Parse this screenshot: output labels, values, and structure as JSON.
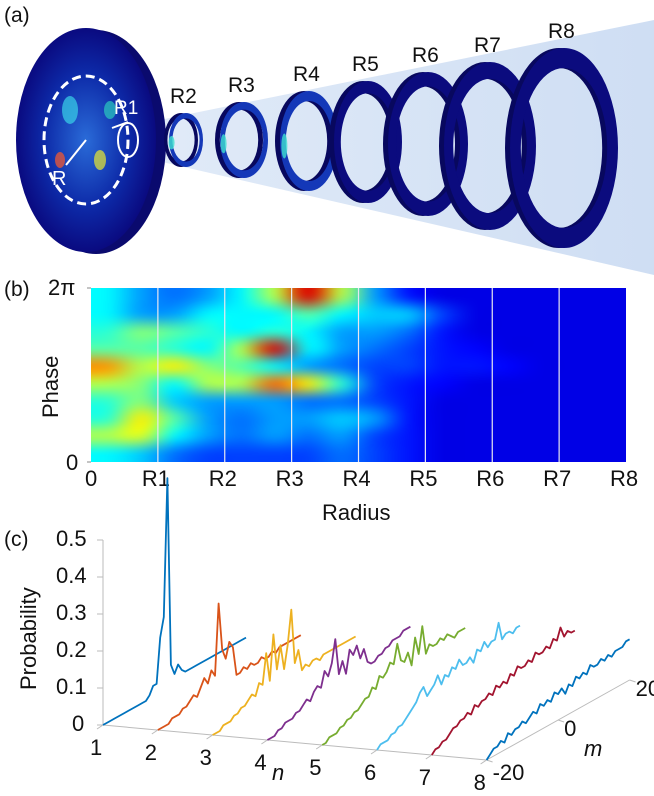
{
  "panel_a": {
    "label": "(a)",
    "disc_labels": {
      "R": "R",
      "R1": "R1"
    },
    "ring_labels": [
      "R2",
      "R3",
      "R4",
      "R5",
      "R6",
      "R7",
      "R8"
    ],
    "colors": {
      "ring": "#0b0b7e",
      "cone": "#cfe0f5"
    }
  },
  "chart_data": [
    {
      "type": "heatmap",
      "panel_label": "(b)",
      "xlabel": "Radius",
      "ylabel": "Phase",
      "x_tick_labels": [
        "0",
        "R1",
        "R2",
        "R3",
        "R4",
        "R5",
        "R6",
        "R7",
        "R8"
      ],
      "y_tick_labels": [
        "0",
        "2π"
      ],
      "colormap": "jet",
      "grid_lines": "vertical at R1..R7",
      "z_rows_from_2pi_to_0": [
        [
          0.3,
          0.2,
          0.15,
          0.2,
          0.3,
          0.5,
          0.9,
          0.5,
          0.2,
          0.05,
          0,
          0,
          0,
          0,
          0,
          0
        ],
        [
          0.3,
          0.2,
          0.2,
          0.3,
          0.3,
          0.3,
          0.4,
          0.3,
          0.25,
          0.25,
          0.1,
          0,
          0,
          0,
          0,
          0
        ],
        [
          0.35,
          0.45,
          0.4,
          0.35,
          0.3,
          0.35,
          0.3,
          0.2,
          0.2,
          0.15,
          0.05,
          0,
          0,
          0,
          0,
          0
        ],
        [
          0.4,
          0.4,
          0.35,
          0.3,
          0.5,
          0.9,
          0.3,
          0.2,
          0.15,
          0.1,
          0.05,
          0.03,
          0,
          0,
          0,
          0
        ],
        [
          0.7,
          0.5,
          0.6,
          0.45,
          0.4,
          0.3,
          0.2,
          0.15,
          0.1,
          0.1,
          0.05,
          0.05,
          0.03,
          0,
          0,
          0
        ],
        [
          0.5,
          0.45,
          0.3,
          0.5,
          0.5,
          0.75,
          0.6,
          0.35,
          0.1,
          0.05,
          0.03,
          0,
          0,
          0,
          0,
          0
        ],
        [
          0.35,
          0.45,
          0.25,
          0.2,
          0.2,
          0.2,
          0.15,
          0.15,
          0.1,
          0.05,
          0,
          0,
          0,
          0,
          0,
          0
        ],
        [
          0.35,
          0.6,
          0.4,
          0.2,
          0.15,
          0.2,
          0.2,
          0.25,
          0.2,
          0.05,
          0,
          0,
          0,
          0,
          0,
          0
        ],
        [
          0.5,
          0.55,
          0.3,
          0.2,
          0.15,
          0.2,
          0.15,
          0.2,
          0.1,
          0.05,
          0,
          0,
          0,
          0,
          0,
          0
        ],
        [
          0.3,
          0.25,
          0.15,
          0.1,
          0.1,
          0.1,
          0.1,
          0.15,
          0.1,
          0.05,
          0,
          0,
          0,
          0,
          0,
          0
        ]
      ]
    },
    {
      "type": "line",
      "panel_label": "(c)",
      "zlabel": "Probability",
      "xlabel": "n",
      "ylabel": "m",
      "z_tick_labels": [
        "0",
        "0.1",
        "0.2",
        "0.3",
        "0.4",
        "0.5"
      ],
      "zlim": [
        0,
        0.5
      ],
      "n_tick_labels": [
        "1",
        "2",
        "3",
        "4",
        "5",
        "6",
        "7",
        "8"
      ],
      "m_tick_labels": [
        "-20",
        "0",
        "20"
      ],
      "m_range": [
        -20,
        20
      ],
      "series": [
        {
          "n": 1,
          "color": "#0072bd",
          "values": [
            0,
            0,
            0,
            0,
            0,
            0,
            0,
            0,
            0,
            0,
            0,
            0,
            0,
            0.01,
            0.03,
            0.03,
            0.15,
            0.2,
            0.57,
            0.06,
            0.03,
            0.05,
            0.03,
            0.02,
            0.02,
            0.02,
            0.02,
            0.02,
            0.02,
            0.02,
            0.02,
            0.02,
            0.02,
            0.02,
            0.02,
            0.02,
            0.02,
            0.02,
            0.02,
            0.02,
            0.02
          ]
        },
        {
          "n": 2,
          "color": "#d95319",
          "values": [
            0,
            0,
            0,
            0,
            0.01,
            0.01,
            0.01,
            0.02,
            0.02,
            0.03,
            0.04,
            0.03,
            0.05,
            0.07,
            0.05,
            0.08,
            0.06,
            0.25,
            0.12,
            0.09,
            0.13,
            0.11,
            0.03,
            0.03,
            0.04,
            0.03,
            0.04,
            0.03,
            0.03,
            0.04,
            0.03,
            0.03,
            0.04,
            0.03,
            0.04,
            0.04,
            0.04,
            0.04,
            0.04,
            0.04,
            0.04
          ]
        },
        {
          "n": 3,
          "color": "#edb120",
          "values": [
            0,
            0,
            0,
            0.01,
            0.01,
            0.01,
            0.02,
            0.02,
            0.03,
            0.03,
            0.04,
            0.05,
            0.04,
            0.07,
            0.06,
            0.14,
            0.06,
            0.18,
            0.08,
            0.14,
            0.07,
            0.13,
            0.22,
            0.07,
            0.1,
            0.04,
            0.05,
            0.04,
            0.05,
            0.05,
            0.04,
            0.05,
            0.05,
            0.05,
            0.05,
            0.05,
            0.05,
            0.05,
            0.05,
            0.05,
            0.05
          ]
        },
        {
          "n": 4,
          "color": "#7e2f8e",
          "values": [
            0,
            0,
            0,
            0.01,
            0.01,
            0.02,
            0.02,
            0.02,
            0.03,
            0.03,
            0.04,
            0.05,
            0.04,
            0.06,
            0.07,
            0.06,
            0.1,
            0.08,
            0.11,
            0.17,
            0.07,
            0.1,
            0.06,
            0.12,
            0.1,
            0.12,
            0.08,
            0.1,
            0.06,
            0.05,
            0.05,
            0.06,
            0.06,
            0.07,
            0.07,
            0.08,
            0.08,
            0.08,
            0.09,
            0.09,
            0.09
          ]
        },
        {
          "n": 5,
          "color": "#77ac30",
          "values": [
            0,
            0,
            0.01,
            0.01,
            0.01,
            0.02,
            0.02,
            0.03,
            0.03,
            0.04,
            0.04,
            0.05,
            0.06,
            0.06,
            0.08,
            0.07,
            0.1,
            0.09,
            0.1,
            0.12,
            0.11,
            0.16,
            0.11,
            0.1,
            0.12,
            0.08,
            0.15,
            0.1,
            0.17,
            0.09,
            0.11,
            0.1,
            0.1,
            0.11,
            0.1,
            0.11,
            0.1,
            0.09,
            0.1,
            0.1,
            0.1
          ]
        },
        {
          "n": 6,
          "color": "#4dbeee",
          "values": [
            0,
            0.01,
            0.01,
            0.01,
            0.02,
            0.02,
            0.03,
            0.03,
            0.04,
            0.05,
            0.06,
            0.07,
            0.09,
            0.1,
            0.07,
            0.08,
            0.09,
            0.11,
            0.08,
            0.1,
            0.09,
            0.11,
            0.1,
            0.12,
            0.1,
            0.1,
            0.11,
            0.09,
            0.12,
            0.11,
            0.13,
            0.11,
            0.12,
            0.12,
            0.16,
            0.11,
            0.12,
            0.12,
            0.11,
            0.12,
            0.12
          ]
        },
        {
          "n": 7,
          "color": "#a2142f",
          "values": [
            0,
            0.01,
            0.01,
            0.02,
            0.02,
            0.03,
            0.04,
            0.04,
            0.05,
            0.05,
            0.06,
            0.05,
            0.07,
            0.06,
            0.07,
            0.07,
            0.08,
            0.07,
            0.09,
            0.08,
            0.09,
            0.08,
            0.1,
            0.09,
            0.11,
            0.1,
            0.1,
            0.11,
            0.1,
            0.12,
            0.11,
            0.11,
            0.12,
            0.11,
            0.13,
            0.12,
            0.15,
            0.12,
            0.13,
            0.12,
            0.12
          ]
        },
        {
          "n": 8,
          "color": "#0072bd",
          "values": [
            0,
            0.01,
            0.02,
            0.02,
            0.03,
            0.02,
            0.04,
            0.03,
            0.04,
            0.04,
            0.05,
            0.04,
            0.05,
            0.06,
            0.05,
            0.07,
            0.06,
            0.07,
            0.06,
            0.08,
            0.07,
            0.08,
            0.06,
            0.08,
            0.07,
            0.09,
            0.08,
            0.09,
            0.08,
            0.1,
            0.09,
            0.09,
            0.1,
            0.09,
            0.1,
            0.09,
            0.1,
            0.1,
            0.1,
            0.11,
            0.11
          ]
        }
      ]
    }
  ]
}
